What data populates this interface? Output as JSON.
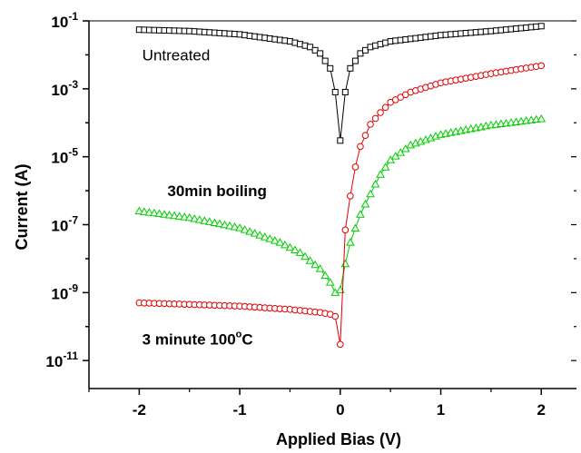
{
  "chart_data": {
    "type": "scatter",
    "xlabel": "Applied Bias (V)",
    "ylabel": "Current (A)",
    "xlim": [
      -2.5,
      2.35
    ],
    "ylim": [
      1.5e-12,
      0.1
    ],
    "yscale": "log",
    "x_ticks": [
      -2,
      -1,
      0,
      1,
      2
    ],
    "x_tick_labels": [
      "-2",
      "-1",
      "0",
      "1",
      "2"
    ],
    "y_ticks": [
      1e-11,
      1e-09,
      1e-07,
      1e-05,
      0.001,
      0.1
    ],
    "y_tick_labels": [
      {
        "base": "10",
        "exp": "-11"
      },
      {
        "base": "10",
        "exp": "-9"
      },
      {
        "base": "10",
        "exp": "-7"
      },
      {
        "base": "10",
        "exp": "-5"
      },
      {
        "base": "10",
        "exp": "-3"
      },
      {
        "base": "10",
        "exp": "-1"
      }
    ],
    "grid": false,
    "series": [
      {
        "key": "untreated",
        "marker": "square",
        "color": "#000000",
        "x": [
          -2.0,
          -1.5,
          -1.0,
          -0.5,
          -0.3,
          -0.2,
          -0.1,
          -0.05,
          0.0,
          0.05,
          0.1,
          0.2,
          0.3,
          0.5,
          1.0,
          1.5,
          2.0
        ],
        "y": [
          0.055,
          0.05,
          0.04,
          0.025,
          0.017,
          0.011,
          0.004,
          0.0008,
          3e-05,
          0.0008,
          0.004,
          0.011,
          0.017,
          0.025,
          0.038,
          0.05,
          0.07
        ]
      },
      {
        "key": "boiling",
        "marker": "triangle",
        "color": "#00cc00",
        "x": [
          -2.0,
          -1.5,
          -1.0,
          -0.6,
          -0.4,
          -0.2,
          -0.1,
          -0.05,
          0.0,
          0.05,
          0.1,
          0.2,
          0.3,
          0.4,
          0.5,
          0.7,
          1.0,
          1.5,
          2.0
        ],
        "y": [
          2.5e-07,
          1.6e-07,
          8e-08,
          3e-08,
          1.5e-08,
          5e-09,
          2e-09,
          1e-09,
          1.2e-09,
          7e-09,
          3e-08,
          2e-07,
          8e-07,
          3e-06,
          8e-06,
          2.2e-05,
          4.5e-05,
          8.5e-05,
          0.00013
        ]
      },
      {
        "key": "heated",
        "marker": "circle",
        "color": "#e00000",
        "x": [
          -2.0,
          -1.5,
          -1.0,
          -0.5,
          -0.2,
          -0.1,
          -0.05,
          0.0,
          0.05,
          0.1,
          0.15,
          0.2,
          0.3,
          0.4,
          0.5,
          0.7,
          1.0,
          1.5,
          2.0
        ],
        "y": [
          5e-10,
          4.5e-10,
          4e-10,
          3.2e-10,
          2.6e-10,
          2.3e-10,
          2e-10,
          3e-11,
          7e-08,
          7e-07,
          5e-06,
          2e-05,
          9e-05,
          0.0002,
          0.0004,
          0.0008,
          0.0015,
          0.0028,
          0.0048
        ]
      }
    ],
    "annotations": [
      {
        "key": "untreated",
        "parts": [
          {
            "text": "Un",
            "bold": false
          },
          {
            "text": "treated",
            "bold": false
          }
        ],
        "x": -1.97,
        "y": 0.0068
      },
      {
        "key": "boiling",
        "parts": [
          {
            "text": "30min boiling",
            "bold": true
          }
        ],
        "x": -1.72,
        "y": 7e-07
      },
      {
        "key": "heated",
        "parts": [
          {
            "text": "3 minute 100",
            "bold": true
          },
          {
            "text": "o",
            "bold": true,
            "sup": true
          },
          {
            "text": "C",
            "bold": true
          }
        ],
        "x": -1.97,
        "y": 3e-11
      }
    ]
  }
}
